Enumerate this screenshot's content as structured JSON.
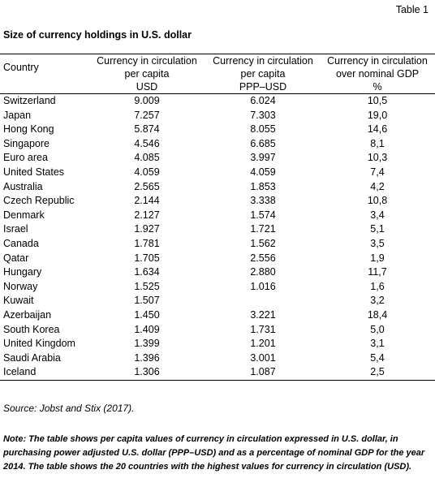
{
  "table_label": "Table 1",
  "title": "Size of currency holdings in U.S. dollar",
  "headers": {
    "country": "Country",
    "col1": [
      "Currency in circulation",
      "per capita"
    ],
    "col2": [
      "Currency in circulation",
      "per capita"
    ],
    "col3": [
      "Currency in circulation",
      "over nominal GDP"
    ]
  },
  "units": [
    "USD",
    "PPP–USD",
    "%"
  ],
  "rows": [
    {
      "country": "Switzerland",
      "usd": "9.009",
      "ppp": "6.024",
      "gdp": "10,5"
    },
    {
      "country": "Japan",
      "usd": "7.257",
      "ppp": "7.303",
      "gdp": "19,0"
    },
    {
      "country": "Hong Kong",
      "usd": "5.874",
      "ppp": "8.055",
      "gdp": "14,6"
    },
    {
      "country": "Singapore",
      "usd": "4.546",
      "ppp": "6.685",
      "gdp": "8,1"
    },
    {
      "country": "Euro area",
      "usd": "4.085",
      "ppp": "3.997",
      "gdp": "10,3"
    },
    {
      "country": "United States",
      "usd": "4.059",
      "ppp": "4.059",
      "gdp": "7,4"
    },
    {
      "country": "Australia",
      "usd": "2.565",
      "ppp": "1.853",
      "gdp": "4,2"
    },
    {
      "country": "Czech Republic",
      "usd": "2.144",
      "ppp": "3.338",
      "gdp": "10,8"
    },
    {
      "country": "Denmark",
      "usd": "2.127",
      "ppp": "1.574",
      "gdp": "3,4"
    },
    {
      "country": "Israel",
      "usd": "1.927",
      "ppp": "1.721",
      "gdp": "5,1"
    },
    {
      "country": "Canada",
      "usd": "1.781",
      "ppp": "1.562",
      "gdp": "3,5"
    },
    {
      "country": "Qatar",
      "usd": "1.705",
      "ppp": "2.556",
      "gdp": "1,9"
    },
    {
      "country": "Hungary",
      "usd": "1.634",
      "ppp": "2.880",
      "gdp": "11,7"
    },
    {
      "country": "Norway",
      "usd": "1.525",
      "ppp": "1.016",
      "gdp": "1,6"
    },
    {
      "country": "Kuwait",
      "usd": "1.507",
      "ppp": "",
      "gdp": "3,2"
    },
    {
      "country": "Azerbaijan",
      "usd": "1.450",
      "ppp": "3.221",
      "gdp": "18,4"
    },
    {
      "country": "South Korea",
      "usd": "1.409",
      "ppp": "1.731",
      "gdp": "5,0"
    },
    {
      "country": "United Kingdom",
      "usd": "1.399",
      "ppp": "1.201",
      "gdp": "3,1"
    },
    {
      "country": "Saudi Arabia",
      "usd": "1.396",
      "ppp": "3.001",
      "gdp": "5,4"
    },
    {
      "country": "Iceland",
      "usd": "1.306",
      "ppp": "1.087",
      "gdp": "2,5"
    }
  ],
  "source": "Source: Jobst and Stix (2017).",
  "note": "Note: The table shows per capita values of currency in circulation expressed in U.S. dollar, in purchasing power adjusted U.S. dollar (PPP–USD) and as a percentage of nominal GDP for the year 2014. The table shows the 20 countries with the highest values for currency in circulation (USD)."
}
